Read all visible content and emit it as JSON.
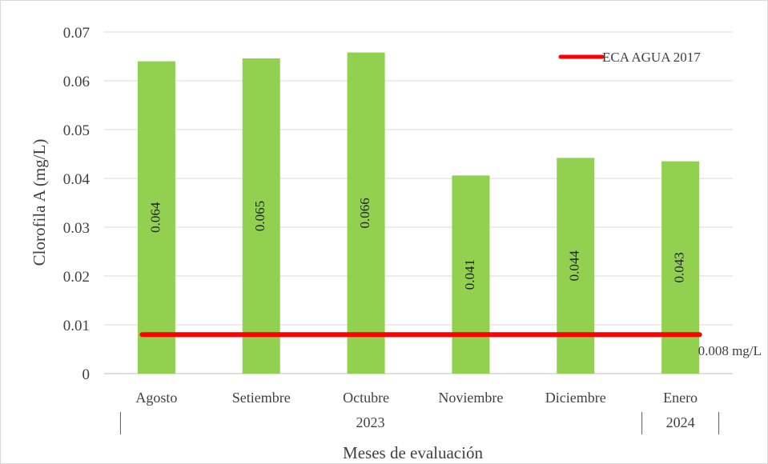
{
  "chart_data": {
    "type": "bar",
    "ylabel": "Clorofila A (mg/L)",
    "xlabel": "Meses de evaluación",
    "ylim": [
      0,
      0.07
    ],
    "yticks": [
      "0",
      "0.01",
      "0.02",
      "0.03",
      "0.04",
      "0.05",
      "0.06",
      "0.07"
    ],
    "grid": true,
    "categories": [
      "Agosto",
      "Setiembre",
      "Octubre",
      "Noviembre",
      "Diciembre",
      "Enero"
    ],
    "year_groups": [
      "2023",
      "2024"
    ],
    "values": [
      0.064,
      0.0646,
      0.0658,
      0.0406,
      0.0442,
      0.0435
    ],
    "data_labels": [
      "0.064",
      "0.065",
      "0.066",
      "0.041",
      "0.044",
      "0.043"
    ],
    "bar_color": "#92D050",
    "reference_line": {
      "name": "ECA AGUA 2017",
      "value": 0.008,
      "label": "0.008 mg/L",
      "color": "#FF0000"
    },
    "legend_position": "top-right"
  }
}
